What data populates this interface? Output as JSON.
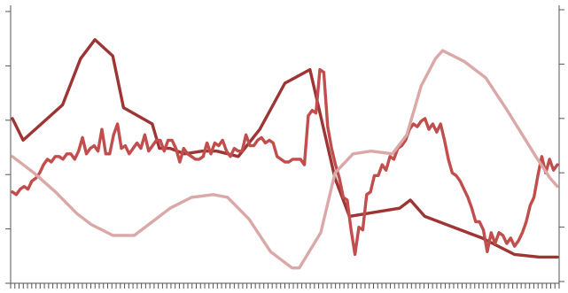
{
  "chart_data": {
    "type": "line",
    "title": "",
    "xlabel": "",
    "ylabel": "",
    "grid": false,
    "legend": "none",
    "x_count": 130,
    "left_axis": {
      "ylim": [
        0,
        100
      ],
      "ticks": [
        0,
        20,
        40,
        60,
        80,
        100
      ]
    },
    "right_axis": {
      "ylim": [
        0,
        100
      ],
      "ticks": [
        0,
        20,
        40,
        60,
        80,
        100
      ]
    },
    "series": [
      {
        "color": "#9e3535",
        "axis": "left",
        "values": [
          [
            0,
            59
          ],
          [
            3,
            51
          ],
          [
            14,
            64
          ],
          [
            19,
            81
          ],
          [
            23,
            88
          ],
          [
            28,
            82
          ],
          [
            31,
            63
          ],
          [
            39,
            57
          ],
          [
            41,
            48
          ],
          [
            44,
            48
          ],
          [
            48,
            46
          ],
          [
            53,
            47
          ],
          [
            57,
            47
          ],
          [
            63,
            45
          ],
          [
            69,
            55
          ],
          [
            76,
            72
          ],
          [
            83,
            77
          ],
          [
            90,
            37
          ],
          [
            94,
            23
          ],
          [
            108,
            26
          ],
          [
            111,
            29
          ],
          [
            115,
            23
          ],
          [
            131,
            15
          ],
          [
            140,
            9
          ],
          [
            147,
            8
          ],
          [
            152,
            8
          ]
        ]
      },
      {
        "color": "#c24d4d",
        "axis": "right",
        "values": [
          [
            0,
            32
          ],
          [
            1,
            31
          ],
          [
            2,
            33
          ],
          [
            3,
            34
          ],
          [
            4,
            33
          ],
          [
            5,
            36
          ],
          [
            6,
            37
          ],
          [
            7,
            39
          ],
          [
            8,
            42
          ],
          [
            9,
            44
          ],
          [
            10,
            43
          ],
          [
            11,
            45
          ],
          [
            12,
            45
          ],
          [
            13,
            44
          ],
          [
            14,
            46
          ],
          [
            15,
            46
          ],
          [
            16,
            44
          ],
          [
            17,
            47
          ],
          [
            18,
            52
          ],
          [
            19,
            46
          ],
          [
            20,
            48
          ],
          [
            21,
            49
          ],
          [
            22,
            47
          ],
          [
            23,
            55
          ],
          [
            24,
            46
          ],
          [
            25,
            46
          ],
          [
            26,
            53
          ],
          [
            27,
            57
          ],
          [
            28,
            48
          ],
          [
            29,
            49
          ],
          [
            30,
            46
          ],
          [
            31,
            48
          ],
          [
            32,
            50
          ],
          [
            33,
            48
          ],
          [
            34,
            53
          ],
          [
            35,
            47
          ],
          [
            36,
            49
          ],
          [
            37,
            51
          ],
          [
            38,
            51
          ],
          [
            39,
            47
          ],
          [
            40,
            51
          ],
          [
            41,
            51
          ],
          [
            42,
            48
          ],
          [
            43,
            43
          ],
          [
            44,
            48
          ],
          [
            45,
            46
          ],
          [
            46,
            45
          ],
          [
            47,
            44
          ],
          [
            48,
            44
          ],
          [
            49,
            45
          ],
          [
            50,
            50
          ],
          [
            51,
            46
          ],
          [
            52,
            50
          ],
          [
            53,
            49
          ],
          [
            54,
            51
          ],
          [
            55,
            47
          ],
          [
            56,
            45
          ],
          [
            57,
            48
          ],
          [
            58,
            47
          ],
          [
            59,
            47
          ],
          [
            60,
            53
          ],
          [
            61,
            49
          ],
          [
            62,
            49
          ],
          [
            63,
            51
          ],
          [
            64,
            52
          ],
          [
            65,
            50
          ],
          [
            66,
            51
          ],
          [
            67,
            50
          ],
          [
            68,
            45
          ],
          [
            69,
            44
          ],
          [
            70,
            43
          ],
          [
            71,
            43
          ],
          [
            72,
            44
          ],
          [
            73,
            44
          ],
          [
            74,
            44
          ],
          [
            75,
            42
          ],
          [
            76,
            60
          ],
          [
            77,
            62
          ],
          [
            78,
            61
          ],
          [
            79,
            77
          ],
          [
            80,
            76
          ],
          [
            81,
            56
          ],
          [
            82,
            48
          ],
          [
            83,
            42
          ],
          [
            84,
            37
          ],
          [
            85,
            30
          ],
          [
            86,
            29
          ],
          [
            87,
            18
          ],
          [
            88,
            9
          ],
          [
            89,
            19
          ],
          [
            90,
            18
          ],
          [
            91,
            31
          ],
          [
            92,
            32
          ],
          [
            93,
            38
          ],
          [
            94,
            38
          ],
          [
            95,
            42
          ],
          [
            96,
            40
          ],
          [
            97,
            45
          ],
          [
            98,
            44
          ],
          [
            99,
            48
          ],
          [
            100,
            49
          ],
          [
            101,
            51
          ],
          [
            102,
            55
          ],
          [
            103,
            57
          ],
          [
            104,
            56
          ],
          [
            105,
            58
          ],
          [
            106,
            59
          ],
          [
            107,
            55
          ],
          [
            108,
            57
          ],
          [
            109,
            54
          ],
          [
            110,
            57
          ],
          [
            111,
            51
          ],
          [
            112,
            44
          ],
          [
            113,
            39
          ],
          [
            114,
            38
          ],
          [
            115,
            36
          ],
          [
            116,
            33
          ],
          [
            117,
            30
          ],
          [
            118,
            26
          ],
          [
            119,
            21
          ],
          [
            120,
            21
          ],
          [
            121,
            18
          ],
          [
            122,
            10
          ],
          [
            123,
            17
          ],
          [
            124,
            13
          ],
          [
            125,
            17
          ],
          [
            126,
            16
          ],
          [
            127,
            13
          ],
          [
            128,
            15
          ],
          [
            129,
            12
          ],
          [
            130,
            14
          ],
          [
            131,
            17
          ],
          [
            132,
            21
          ],
          [
            133,
            27
          ],
          [
            134,
            30
          ],
          [
            135,
            38
          ],
          [
            136,
            45
          ],
          [
            137,
            39
          ],
          [
            138,
            44
          ],
          [
            139,
            40
          ],
          [
            140,
            42
          ]
        ]
      },
      {
        "color": "#dba8a8",
        "axis": "left",
        "values": [
          [
            0,
            45
          ],
          [
            6,
            39
          ],
          [
            12,
            32
          ],
          [
            18,
            24
          ],
          [
            22,
            20
          ],
          [
            28,
            16
          ],
          [
            34,
            16
          ],
          [
            38,
            20
          ],
          [
            44,
            26
          ],
          [
            50,
            30
          ],
          [
            56,
            31
          ],
          [
            60,
            30
          ],
          [
            66,
            22
          ],
          [
            72,
            10
          ],
          [
            78,
            4
          ],
          [
            80,
            4
          ],
          [
            86,
            17
          ],
          [
            90,
            39
          ],
          [
            95,
            46
          ],
          [
            100,
            47
          ],
          [
            106,
            46
          ],
          [
            110,
            53
          ],
          [
            114,
            71
          ],
          [
            118,
            81
          ],
          [
            120,
            84
          ],
          [
            126,
            80
          ],
          [
            132,
            74
          ],
          [
            138,
            62
          ],
          [
            146,
            45
          ],
          [
            150,
            37
          ],
          [
            152,
            34
          ]
        ]
      }
    ]
  }
}
